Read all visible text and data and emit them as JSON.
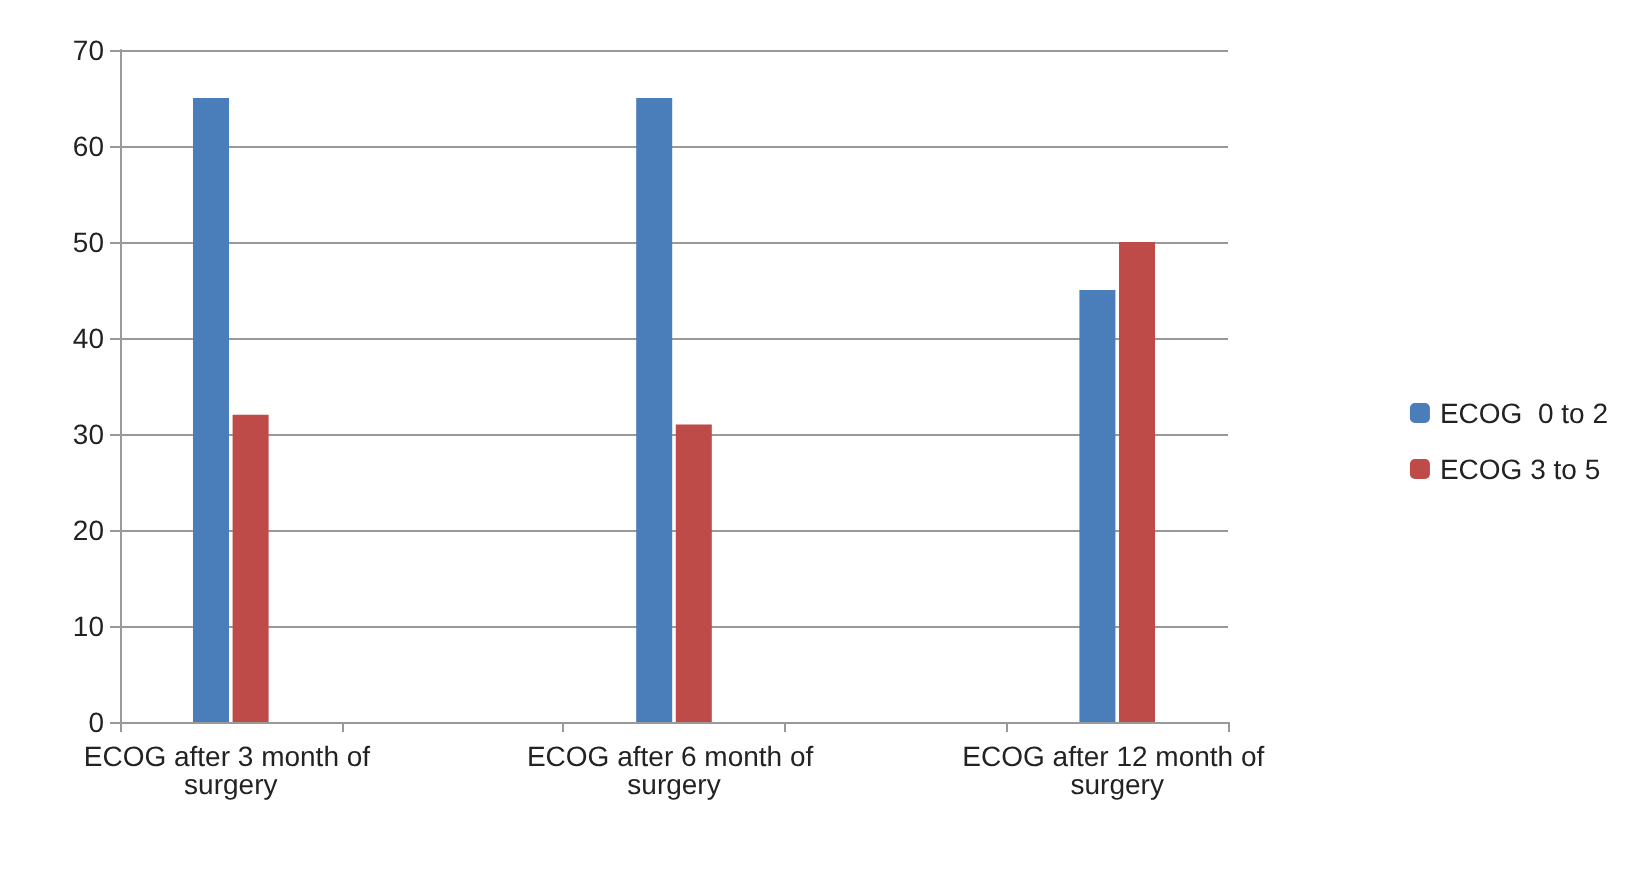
{
  "chart_data": {
    "type": "bar",
    "categories": [
      "ECOG after 3 month of surgery",
      null,
      "ECOG after 6 month of surgery",
      null,
      "ECOG after 12 month of surgery"
    ],
    "series": [
      {
        "name": "ECOG  0 to 2",
        "color": "#4a7ebb",
        "values": [
          65,
          0,
          65,
          0,
          45
        ]
      },
      {
        "name": "ECOG 3 to 5",
        "color": "#be4b48",
        "values": [
          32,
          0,
          31,
          0,
          50
        ]
      }
    ],
    "ylim": [
      0,
      70
    ],
    "yticks": [
      0,
      10,
      20,
      30,
      40,
      50,
      60,
      70
    ],
    "grid": "y",
    "legend": "right"
  }
}
